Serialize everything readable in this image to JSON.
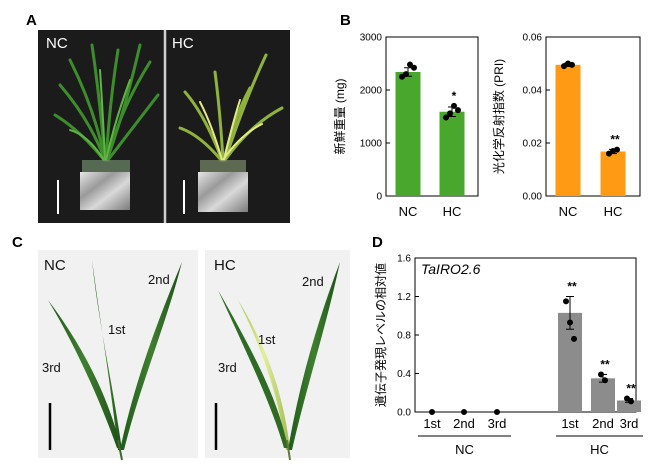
{
  "panels": {
    "a": {
      "letter": "A",
      "labels": [
        "NC",
        "HC"
      ]
    },
    "b": {
      "letter": "B"
    },
    "c": {
      "letter": "C",
      "nc_label": "NC",
      "hc_label": "HC",
      "leaf_labels": {
        "first": "1st",
        "second": "2nd",
        "third": "3rd"
      }
    },
    "d": {
      "letter": "D"
    }
  },
  "colors": {
    "green": "#4aa72e",
    "orange": "#ff9a14",
    "gray": "#8c8c8c"
  },
  "chart_data": [
    {
      "type": "bar",
      "panel": "B-left",
      "categories": [
        "NC",
        "HC"
      ],
      "values": [
        2340,
        1590
      ],
      "errors": [
        80,
        90
      ],
      "points": [
        [
          2250,
          2300,
          2480,
          2420
        ],
        [
          1480,
          1560,
          1700,
          1620
        ]
      ],
      "significance": [
        "",
        "*"
      ],
      "ylabel": "新鮮重量 (mg)",
      "ylim": [
        0,
        3000
      ],
      "yticks": [
        "0",
        "1000",
        "2000",
        "3000"
      ],
      "color": "green"
    },
    {
      "type": "bar",
      "panel": "B-right",
      "categories": [
        "NC",
        "HC"
      ],
      "values": [
        0.0495,
        0.0168
      ],
      "errors": [
        0.0006,
        0.0008
      ],
      "points": [
        [
          0.049,
          0.05,
          0.0495
        ],
        [
          0.016,
          0.017,
          0.0175
        ]
      ],
      "significance": [
        "",
        "**"
      ],
      "ylabel": "光化学反射指数 (PRI)",
      "ylim": [
        0,
        0.06
      ],
      "yticks": [
        "0.00",
        "0.02",
        "0.04",
        "0.06"
      ],
      "color": "orange"
    },
    {
      "type": "bar",
      "panel": "D",
      "title": "TaIRO2.6",
      "categories": [
        "1st",
        "2nd",
        "3rd",
        "1st",
        "2nd",
        "3rd"
      ],
      "groups": [
        {
          "name": "NC",
          "span": [
            0,
            2
          ]
        },
        {
          "name": "HC",
          "span": [
            3,
            5
          ]
        }
      ],
      "values": [
        0.0,
        0.0,
        0.0,
        1.03,
        0.35,
        0.12
      ],
      "errors": [
        0,
        0,
        0,
        0.17,
        0.04,
        0.02
      ],
      "points": [
        [
          0.0
        ],
        [
          0.0
        ],
        [
          0.0
        ],
        [
          1.15,
          0.93,
          0.76
        ],
        [
          0.39,
          0.33
        ],
        [
          0.14,
          0.11
        ]
      ],
      "significance": [
        "",
        "",
        "",
        "**",
        "**",
        "**"
      ],
      "ylabel": "遺伝子発現レベルの相対値",
      "ylim": [
        0,
        1.6
      ],
      "yticks": [
        "0.0",
        "0.4",
        "0.8",
        "1.2",
        "1.6"
      ],
      "color": "gray"
    }
  ]
}
